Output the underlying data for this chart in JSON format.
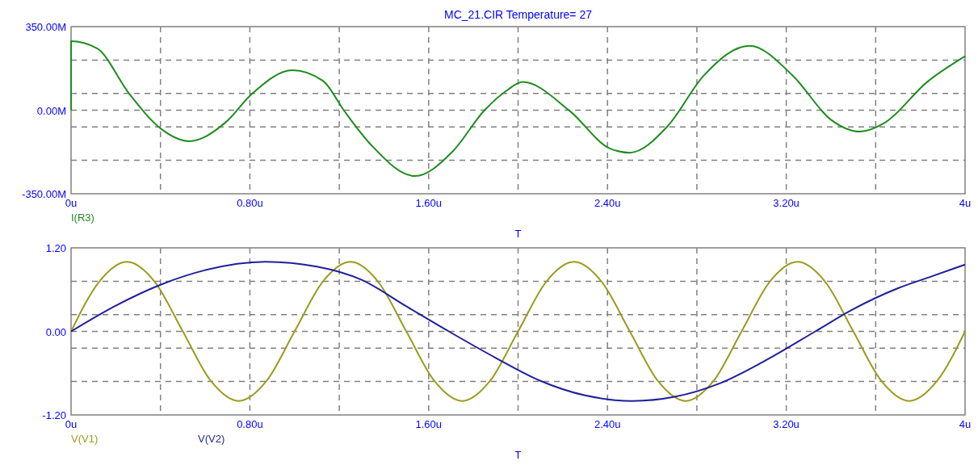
{
  "chart_data": [
    {
      "type": "line",
      "title": "MC_21.CIR Temperature= 27",
      "xlabel": "T",
      "grid": true,
      "legend": "bottom left",
      "line_style": "solid",
      "xlim": [
        0,
        4
      ],
      "xticks": [
        {
          "value": 0,
          "label": "0u"
        },
        {
          "value": 0.4,
          "label": null
        },
        {
          "value": 0.8,
          "label": "0.80u"
        },
        {
          "value": 1.2,
          "label": null
        },
        {
          "value": 1.6,
          "label": "1.60u"
        },
        {
          "value": 2.0,
          "label": null
        },
        {
          "value": 2.4,
          "label": "2.40u"
        },
        {
          "value": 2.8,
          "label": null
        },
        {
          "value": 3.2,
          "label": "3.20u"
        },
        {
          "value": 3.6,
          "label": null
        },
        {
          "value": 4,
          "label": "4u"
        }
      ],
      "ylim": [
        -350,
        350
      ],
      "yticks": [
        {
          "value": -350,
          "label": "-350.00M"
        },
        {
          "value": -210,
          "label": null
        },
        {
          "value": -70,
          "label": null
        },
        {
          "value": 0,
          "label": "0.00M"
        },
        {
          "value": 70,
          "label": null
        },
        {
          "value": 210,
          "label": null
        },
        {
          "value": 350,
          "label": "350.00M"
        }
      ],
      "series": [
        {
          "name": "I(R3)",
          "color": "#1e8c1e",
          "x": [
            0,
            0,
            0.116,
            0.26,
            0.405,
            0.528,
            0.69,
            0.81,
            0.99,
            1.127,
            1.22,
            1.344,
            1.539,
            1.706,
            1.85,
            1.95,
            2.02,
            2.23,
            2.41,
            2.5,
            2.67,
            2.83,
            3.035,
            3.23,
            3.4,
            3.53,
            3.64,
            3.83,
            4
          ],
          "values": [
            0,
            289,
            259,
            69,
            -80,
            -130,
            -52,
            69,
            167,
            123,
            0,
            -147,
            -276,
            -174,
            0,
            83,
            118,
            -2,
            -160,
            -178,
            -66,
            144,
            270,
            144,
            -40,
            -90,
            -53,
            118,
            226
          ]
        }
      ]
    },
    {
      "type": "line",
      "xlabel": "T",
      "grid": true,
      "legend": "bottom left",
      "line_style": "solid",
      "xlim": [
        0,
        4
      ],
      "xticks": [
        {
          "value": 0,
          "label": "0u"
        },
        {
          "value": 0.4,
          "label": null
        },
        {
          "value": 0.8,
          "label": "0.80u"
        },
        {
          "value": 1.2,
          "label": null
        },
        {
          "value": 1.6,
          "label": "1.60u"
        },
        {
          "value": 2.0,
          "label": null
        },
        {
          "value": 2.4,
          "label": "2.40u"
        },
        {
          "value": 2.8,
          "label": null
        },
        {
          "value": 3.2,
          "label": "3.20u"
        },
        {
          "value": 3.6,
          "label": null
        },
        {
          "value": 4,
          "label": "4u"
        }
      ],
      "ylim": [
        -1.2,
        1.2
      ],
      "yticks": [
        {
          "value": -1.2,
          "label": "-1.20"
        },
        {
          "value": -0.72,
          "label": null
        },
        {
          "value": -0.24,
          "label": null
        },
        {
          "value": 0,
          "label": "0.00"
        },
        {
          "value": 0.24,
          "label": null
        },
        {
          "value": 0.72,
          "label": null
        },
        {
          "value": 1.2,
          "label": "1.20"
        }
      ],
      "series": [
        {
          "name": "V(V1)",
          "color": "#9b9b1e",
          "x": [
            0,
            0.125,
            0.25,
            0.375,
            0.5,
            0.625,
            0.75,
            0.875,
            1,
            1.125,
            1.25,
            1.375,
            1.5,
            1.625,
            1.75,
            1.875,
            2,
            2.125,
            2.25,
            2.375,
            2.5,
            2.625,
            2.75,
            2.875,
            3,
            3.125,
            3.25,
            3.375,
            3.5,
            3.625,
            3.75,
            3.875,
            4
          ],
          "values": [
            0,
            0.71,
            1,
            0.71,
            0,
            -0.71,
            -1,
            -0.71,
            0,
            0.71,
            1,
            0.71,
            0,
            -0.71,
            -1,
            -0.71,
            0,
            0.71,
            1,
            0.71,
            0,
            -0.71,
            -1,
            -0.71,
            0,
            0.71,
            1,
            0.71,
            0,
            -0.71,
            -1,
            -0.71,
            0
          ]
        },
        {
          "name": "V(V2)",
          "color": "#1e1e9b",
          "x": [
            0,
            0.2,
            0.4,
            0.6,
            0.87,
            1.1,
            1.3,
            1.5,
            1.69,
            1.9,
            2.1,
            2.3,
            2.51,
            2.7,
            2.9,
            3.1,
            3.33,
            3.5,
            3.7,
            3.85,
            4
          ],
          "values": [
            0,
            0.37,
            0.67,
            0.88,
            1,
            0.93,
            0.74,
            0.36,
            0,
            -0.38,
            -0.71,
            -0.92,
            -1,
            -0.94,
            -0.75,
            -0.43,
            0,
            0.32,
            0.62,
            0.79,
            0.96
          ]
        }
      ]
    }
  ]
}
